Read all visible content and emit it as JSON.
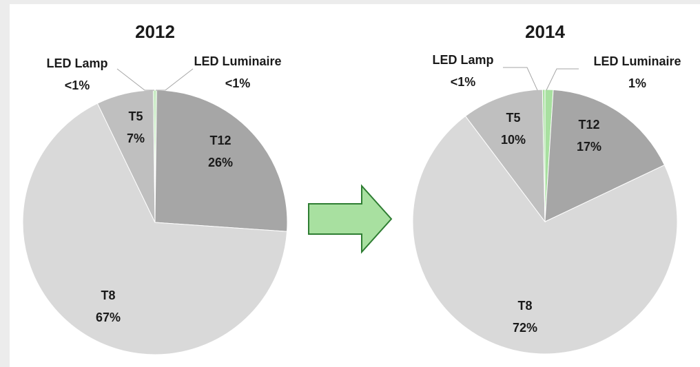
{
  "chart_data": [
    {
      "type": "pie",
      "title": "2012",
      "categories": [
        "LED Luminaire",
        "T12",
        "T8",
        "T5",
        "LED Lamp"
      ],
      "values": [
        0.2,
        26,
        67,
        7,
        0.2
      ],
      "value_labels": [
        "<1%",
        "26%",
        "67%",
        "7%",
        "<1%"
      ],
      "colors": [
        "#a8e0a0",
        "#a6a6a6",
        "#d9d9d9",
        "#bfbfbf",
        "#a8e0a0"
      ]
    },
    {
      "type": "pie",
      "title": "2014",
      "categories": [
        "LED Luminaire",
        "T12",
        "T8",
        "T5",
        "LED Lamp"
      ],
      "values": [
        1,
        17,
        72,
        10,
        0.3
      ],
      "value_labels": [
        "1%",
        "17%",
        "72%",
        "10%",
        "<1%"
      ],
      "colors": [
        "#a8e0a0",
        "#a6a6a6",
        "#d9d9d9",
        "#bfbfbf",
        "#a8e0a0"
      ]
    }
  ]
}
